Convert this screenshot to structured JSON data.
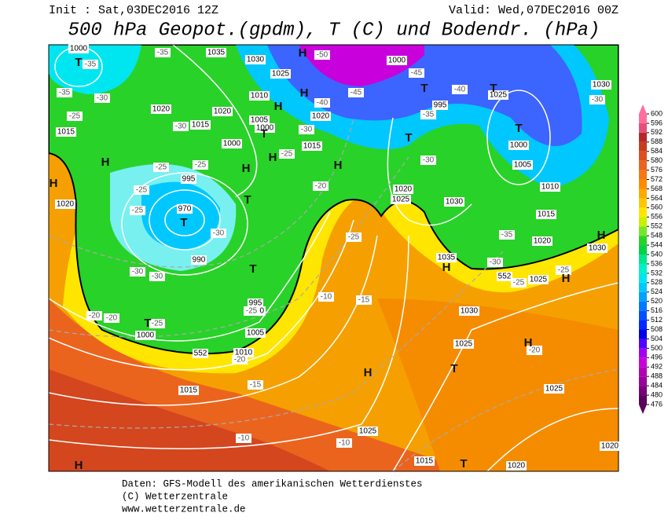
{
  "header": {
    "init": "Init : Sat,03DEC2016 12Z",
    "valid": "Valid: Wed,07DEC2016 00Z",
    "title": "500 hPa Geopot.(gpdm), T (C) und Bodendr. (hPa)"
  },
  "colorbar": {
    "levels": [
      476,
      480,
      484,
      488,
      492,
      496,
      500,
      504,
      508,
      512,
      516,
      520,
      524,
      528,
      532,
      536,
      540,
      544,
      548,
      552,
      556,
      560,
      564,
      568,
      572,
      576,
      580,
      584,
      588,
      592,
      596,
      600
    ],
    "colors": [
      "#5a005a",
      "#7a007a",
      "#9a009a",
      "#b400b4",
      "#c800dc",
      "#a000f0",
      "#5000ff",
      "#0000e6",
      "#0028ff",
      "#0050ff",
      "#0078ff",
      "#00a0ff",
      "#00c8ff",
      "#00e6f0",
      "#00f0c8",
      "#00e68c",
      "#00d246",
      "#28d228",
      "#78e628",
      "#c8f000",
      "#ffe600",
      "#ffc800",
      "#ffaa00",
      "#ff8c00",
      "#f57814",
      "#eb641e",
      "#dc501e",
      "#c83c1e",
      "#b42828",
      "#e65078",
      "#ff6ea0"
    ]
  },
  "map_labels": [
    "1000",
    "1035",
    "1030",
    "1025",
    "1000",
    "1030",
    "1020",
    "1015",
    "1020",
    "1010",
    "1005",
    "1000",
    "1020",
    "1015",
    "1000",
    "1015",
    "1000",
    "1005",
    "1010",
    "1015",
    "1020",
    "1030",
    "1035",
    "1025",
    "1030",
    "1025",
    "1025",
    "1020",
    "995",
    "970",
    "990",
    "995",
    "1000",
    "1005",
    "1000",
    "1010",
    "1015",
    "1025",
    "1015",
    "1020",
    "1020",
    "1025",
    "1030",
    "1020",
    "995",
    "1025",
    "552",
    "552",
    "-35",
    "-35",
    "-30",
    "-25",
    "-35",
    "-30",
    "-25",
    "-25",
    "-25",
    "-25",
    "-20",
    "-30",
    "-30",
    "-30",
    "-20",
    "-20",
    "-25",
    "-25",
    "-20",
    "-15",
    "-10",
    "-10",
    "-15",
    "-10",
    "-25",
    "-25",
    "-30",
    "-40",
    "-45",
    "-45",
    "-35",
    "-40",
    "-30",
    "-35",
    "-30",
    "-25",
    "-25",
    "-20",
    "-30",
    "-50",
    "T",
    "H",
    "H",
    "T",
    "T",
    "T",
    "T",
    "H",
    "H",
    "H",
    "T",
    "H",
    "H",
    "T",
    "T",
    "T",
    "T",
    "H",
    "H",
    "H",
    "H",
    "T",
    "H",
    "H",
    "T",
    "H"
  ],
  "footer": [
    "Daten: GFS-Modell des amerikanischen Wetterdienstes",
    "(C) Wetterzentrale",
    "www.wetterzentrale.de"
  ]
}
